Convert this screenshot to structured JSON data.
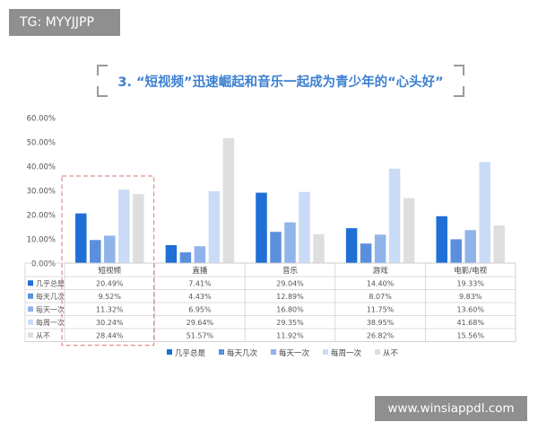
{
  "badge": {
    "text": "TG: MYYJJPP"
  },
  "title": "3. “短视频”迅速崛起和音乐一起成为青少年的“心头好”",
  "watermark": {
    "text": "www.winsiappdl.com"
  },
  "colors": {
    "几乎总是": "#1f6fd6",
    "每天几次": "#5a8fde",
    "每天一次": "#90b4ea",
    "每周一次": "#c9dbf6",
    "从不": "#dedede",
    "highlight": "#e58a8a"
  },
  "chart_data": {
    "type": "bar",
    "categories": [
      "短视频",
      "直播",
      "音乐",
      "游戏",
      "电影/电视"
    ],
    "series": [
      {
        "name": "几乎总是",
        "values": [
          20.49,
          7.41,
          29.04,
          14.4,
          19.33
        ],
        "labels": [
          "20.49%",
          "7.41%",
          "29.04%",
          "14.40%",
          "19.33%"
        ]
      },
      {
        "name": "每天几次",
        "values": [
          9.52,
          4.43,
          12.89,
          8.07,
          9.83
        ],
        "labels": [
          "9.52%",
          "4.43%",
          "12.89%",
          "8.07%",
          "9.83%"
        ]
      },
      {
        "name": "每天一次",
        "values": [
          11.32,
          6.95,
          16.8,
          11.75,
          13.6
        ],
        "labels": [
          "11.32%",
          "6.95%",
          "16.80%",
          "11.75%",
          "13.60%"
        ]
      },
      {
        "name": "每周一次",
        "values": [
          30.24,
          29.64,
          29.35,
          38.95,
          41.68
        ],
        "labels": [
          "30.24%",
          "29.64%",
          "29.35%",
          "38.95%",
          "41.68%"
        ]
      },
      {
        "name": "从不",
        "values": [
          28.44,
          51.57,
          11.92,
          26.82,
          15.56
        ],
        "labels": [
          "28.44%",
          "51.57%",
          "11.92%",
          "26.82%",
          "15.56%"
        ]
      }
    ],
    "yticks": [
      "0.00%",
      "10.00%",
      "20.00%",
      "30.00%",
      "40.00%",
      "50.00%",
      "60.00%"
    ],
    "ylim": [
      0,
      60
    ],
    "legend_position": "bottom",
    "grid": false,
    "data_table": true,
    "highlighted_category": "短视频"
  }
}
